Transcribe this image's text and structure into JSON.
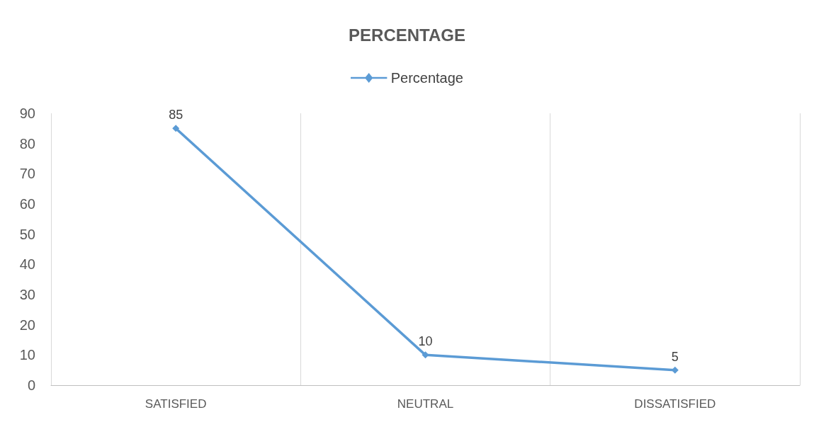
{
  "chart_data": {
    "type": "line",
    "title": "PERCENTAGE",
    "categories": [
      "SATISFIED",
      "NEUTRAL",
      "DISSATISFIED"
    ],
    "series": [
      {
        "name": "Percentage",
        "color": "#5b9bd5",
        "values": [
          85,
          10,
          5
        ]
      }
    ],
    "ylim": [
      0,
      90
    ],
    "yticks": [
      0,
      10,
      20,
      30,
      40,
      50,
      60,
      70,
      80,
      90
    ],
    "grid": "x",
    "legend": "top",
    "marker": "diamond",
    "line_style": "solid",
    "data_labels": true
  }
}
